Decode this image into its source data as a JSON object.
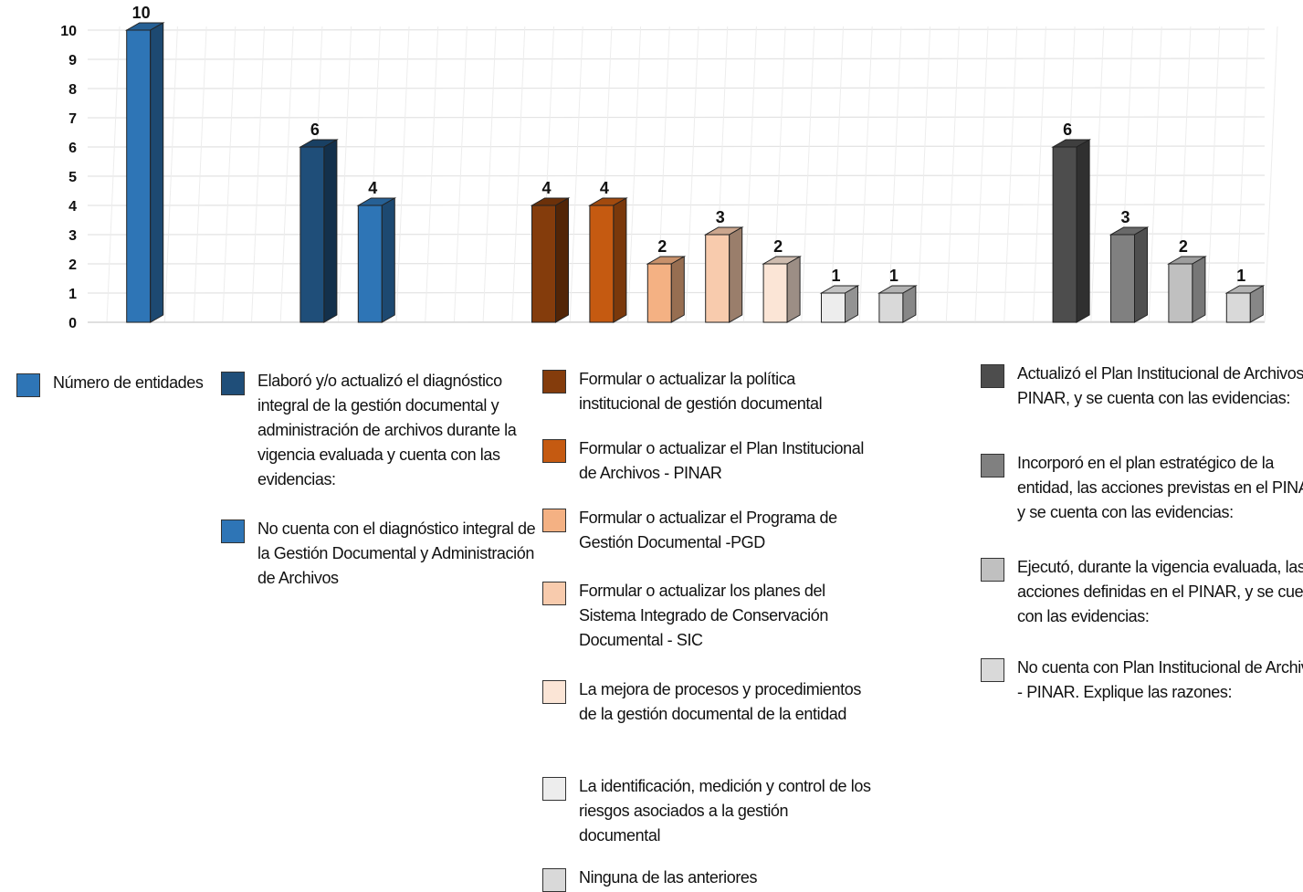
{
  "chart_data": {
    "type": "bar",
    "ylim": [
      0,
      10
    ],
    "yticks": [
      0,
      1,
      2,
      3,
      4,
      5,
      6,
      7,
      8,
      9,
      10
    ],
    "grid": true,
    "legend_position": "bottom",
    "series": [
      {
        "name": "Número de entidades",
        "value": 10,
        "color": "#2E75B6",
        "slot": 1
      },
      {
        "name": "Elaboró  y/o actualizó el diagnóstico integral de la gestión documental y administración de archivos durante la vigencia evaluada y cuenta con las evidencias:",
        "value": 6,
        "color": "#1F4E79",
        "slot": 7
      },
      {
        "name": "No cuenta con el diagnóstico integral de la Gestión Documental y Administración de Archivos",
        "value": 4,
        "color": "#2E75B6",
        "slot": 9
      },
      {
        "name": "Formular o actualizar la política institucional de gestión documental",
        "value": 4,
        "color": "#843C0C",
        "slot": 15
      },
      {
        "name": "Formular o actualizar el Plan Institucional de Archivos - PINAR",
        "value": 4,
        "color": "#C55A11",
        "slot": 17
      },
      {
        "name": "Formular o actualizar el Programa de Gestión Documental -PGD",
        "value": 2,
        "color": "#F4B183",
        "slot": 19
      },
      {
        "name": "Formular o actualizar los planes del Sistema Integrado de Conservación Documental - SIC",
        "value": 3,
        "color": "#F8CBAD",
        "slot": 21
      },
      {
        "name": "La mejora de procesos y procedimientos de la gestión documental de la entidad",
        "value": 2,
        "color": "#FBE5D6",
        "slot": 23
      },
      {
        "name": "La identificación, medición y control de los riesgos asociados a la gestión documental",
        "value": 1,
        "color": "#EDEDED",
        "slot": 25
      },
      {
        "name": "Ninguna de las anteriores",
        "value": 1,
        "color": "#D9D9D9",
        "slot": 27
      },
      {
        "name": "Actualizó el Plan Institucional de Archivos - PINAR, y se cuenta con las evidencias:",
        "value": 6,
        "color": "#4D4D4D",
        "slot": 33
      },
      {
        "name": "Incorporó en el plan estratégico de la entidad, las acciones previstas en el PINAR, y se cuenta con las evidencias:",
        "value": 3,
        "color": "#808080",
        "slot": 35
      },
      {
        "name": "Ejecutó, durante la vigencia evaluada, las acciones definidas en el PINAR, y se cuenta con las evidencias:",
        "value": 2,
        "color": "#C0C0C0",
        "slot": 37
      },
      {
        "name": "No cuenta con Plan Institucional de Archivos - PINAR. Explique las razones:",
        "value": 1,
        "color": "#D9D9D9",
        "slot": 39
      }
    ]
  }
}
